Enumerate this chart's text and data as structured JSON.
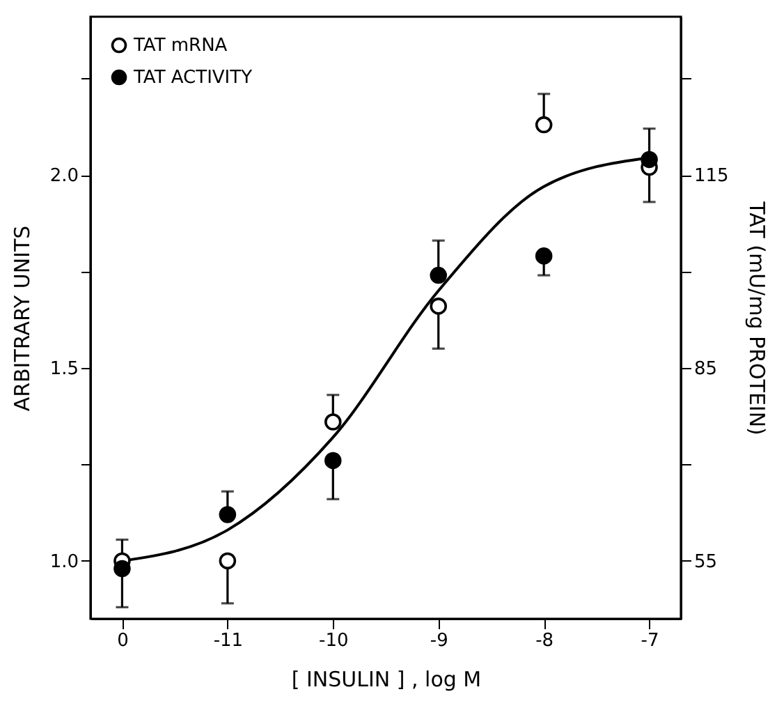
{
  "chart_data": {
    "type": "scatter",
    "xlabel": "[ INSULIN ] , log M",
    "ylabel": "ARBITRARY UNITS",
    "y2label": "TAT (mU/mg PROTEIN)",
    "categories": [
      "0",
      "-11",
      "-10",
      "-9",
      "-8",
      "-7"
    ],
    "ylim": [
      0.85,
      2.41
    ],
    "yticks": [
      {
        "value": 1,
        "label": "1.0"
      },
      {
        "value": 1.25,
        "label": null
      },
      1.5,
      {
        "value": 1.75,
        "label": null
      },
      {
        "value": 2,
        "label": "2.0"
      },
      {
        "value": 2.25,
        "label": null
      }
    ],
    "y2lim": [
      46,
      139.6
    ],
    "y2ticks": [
      55,
      {
        "value": 70,
        "label": null
      },
      85,
      {
        "value": 100,
        "label": null
      },
      115,
      {
        "value": 130,
        "label": null
      }
    ],
    "legend": "top left",
    "marker": "circle",
    "grid": false,
    "series": [
      {
        "name": "TAT mRNA",
        "color": "#ffffff",
        "x": [
          "0",
          "-11",
          "-10",
          "-9",
          "-8",
          "-7"
        ],
        "values": [
          1.0,
          1.0,
          1.36,
          1.66,
          2.13,
          2.02
        ],
        "errors": [
          [
            1.0,
            1.055
          ],
          [
            0.89,
            1.0
          ],
          [
            1.36,
            1.43
          ],
          [
            1.55,
            1.66
          ],
          [
            2.13,
            2.21
          ],
          [
            2.02,
            2.12
          ]
        ]
      },
      {
        "name": "TAT ACTIVITY",
        "color": "#000000",
        "x": [
          "0",
          "-11",
          "-10",
          "-9",
          "-8",
          "-7"
        ],
        "values": [
          0.98,
          1.12,
          1.26,
          1.74,
          1.79,
          2.04
        ],
        "errors": [
          [
            0.88,
            0.98
          ],
          [
            1.12,
            1.18
          ],
          [
            1.16,
            1.26
          ],
          [
            1.74,
            1.83
          ],
          [
            1.74,
            1.79
          ],
          [
            1.93,
            2.04
          ]
        ]
      },
      {
        "type": "line",
        "color": "#000000",
        "marker": "none",
        "x": [
          "0",
          "-11",
          "-10",
          "-9",
          "-8",
          "-7"
        ],
        "values": [
          1.0,
          1.08,
          1.32,
          1.7,
          1.97,
          2.045
        ]
      }
    ]
  }
}
